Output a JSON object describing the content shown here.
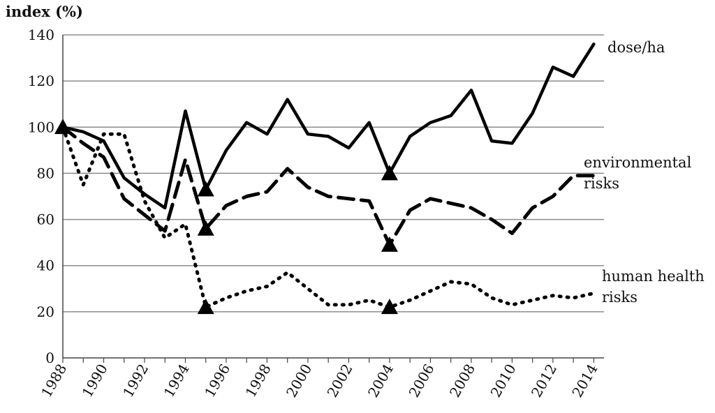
{
  "chart_data": {
    "type": "line",
    "ylabel": "index (%)",
    "ylim": [
      0,
      140
    ],
    "yticks": [
      0,
      20,
      40,
      60,
      80,
      100,
      120,
      140
    ],
    "xlim": [
      1988,
      2014.5
    ],
    "xticks": [
      1988,
      1990,
      1992,
      1994,
      1996,
      1998,
      2000,
      2002,
      2004,
      2006,
      2008,
      2010,
      2012,
      2014
    ],
    "grid": "horizontal",
    "legend": "labels at right end of lines",
    "series": [
      {
        "name": "dose/ha",
        "label_lines": [
          "dose/ha"
        ],
        "style": "solid",
        "x": [
          1988,
          1989,
          1990,
          1991,
          1992,
          1993,
          1994,
          1995,
          1996,
          1997,
          1998,
          1999,
          2000,
          2001,
          2002,
          2003,
          2004,
          2005,
          2006,
          2007,
          2008,
          2009,
          2010,
          2011,
          2012,
          2013,
          2014
        ],
        "y": [
          100,
          98,
          94,
          78,
          71,
          65,
          107,
          73,
          90,
          102,
          97,
          112,
          97,
          96,
          91,
          102,
          80,
          96,
          102,
          105,
          116,
          94,
          93,
          106,
          126,
          122,
          136
        ],
        "markers": [
          {
            "x": 1988,
            "y": 100
          },
          {
            "x": 1995,
            "y": 73
          },
          {
            "x": 2004,
            "y": 80
          }
        ]
      },
      {
        "name": "environmental risks",
        "label_lines": [
          "environmental",
          "risks"
        ],
        "style": "dashed",
        "x": [
          1988,
          1989,
          1990,
          1991,
          1992,
          1993,
          1994,
          1995,
          1996,
          1997,
          1998,
          1999,
          2000,
          2001,
          2002,
          2003,
          2004,
          2005,
          2006,
          2007,
          2008,
          2009,
          2010,
          2011,
          2012,
          2013,
          2014
        ],
        "y": [
          100,
          93,
          87,
          69,
          62,
          55,
          86,
          56,
          66,
          70,
          72,
          82,
          74,
          70,
          69,
          68,
          49,
          64,
          69,
          67,
          65,
          60,
          54,
          65,
          70,
          79,
          79
        ],
        "markers": [
          {
            "x": 1995,
            "y": 56
          },
          {
            "x": 2004,
            "y": 49
          }
        ]
      },
      {
        "name": "human health risks",
        "label_lines": [
          "human health",
          "risks"
        ],
        "style": "dotted",
        "x": [
          1988,
          1989,
          1990,
          1991,
          1992,
          1993,
          1994,
          1995,
          1996,
          1997,
          1998,
          1999,
          2000,
          2001,
          2002,
          2003,
          2004,
          2005,
          2006,
          2007,
          2008,
          2009,
          2010,
          2011,
          2012,
          2013,
          2014
        ],
        "y": [
          100,
          75,
          97,
          97,
          68,
          52,
          58,
          22,
          26,
          29,
          31,
          37,
          30,
          23,
          23,
          25,
          22,
          25,
          29,
          33,
          32,
          26,
          23,
          25,
          27,
          26,
          28
        ],
        "markers": [
          {
            "x": 1995,
            "y": 22
          },
          {
            "x": 2004,
            "y": 22
          }
        ]
      }
    ]
  }
}
